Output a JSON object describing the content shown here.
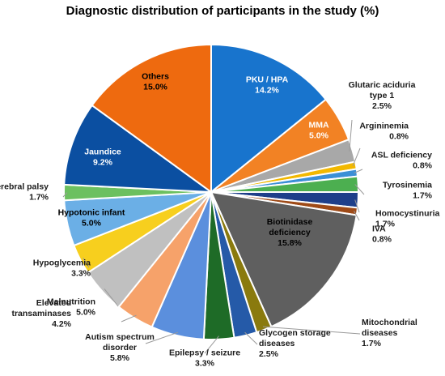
{
  "chart_data": {
    "type": "pie",
    "title": "Diagnostic distribution of participants in the study (%)",
    "slices": [
      {
        "name": "PKU / HPA",
        "value": 14.2,
        "pct": "14.2%",
        "color": "#1874CD"
      },
      {
        "name": "MMA",
        "value": 5.0,
        "pct": "5.0%",
        "color": "#F28224"
      },
      {
        "name": "Glutaric aciduria type 1",
        "value": 2.5,
        "pct": "2.5%",
        "color": "#A8A8A8"
      },
      {
        "name": "Argininemia",
        "value": 0.8,
        "pct": "0.8%",
        "color": "#F2B800"
      },
      {
        "name": "ASL deficiency",
        "value": 0.8,
        "pct": "0.8%",
        "color": "#3B8FD6"
      },
      {
        "name": "Tyrosinemia",
        "value": 1.7,
        "pct": "1.7%",
        "color": "#4CAF50"
      },
      {
        "name": "Homocystinuria",
        "value": 1.7,
        "pct": "1.7%",
        "color": "#1E3F8A"
      },
      {
        "name": "IVA",
        "value": 0.8,
        "pct": "0.8%",
        "color": "#9E4A17"
      },
      {
        "name": "Biotinidase deficiency",
        "value": 15.8,
        "pct": "15.8%",
        "color": "#5F5F5F"
      },
      {
        "name": "Mitochondrial diseases",
        "value": 1.7,
        "pct": "1.7%",
        "color": "#8A7A0E"
      },
      {
        "name": "Glycogen storage diseases",
        "value": 2.5,
        "pct": "2.5%",
        "color": "#255AA8"
      },
      {
        "name": "Epilepsy / seizure",
        "value": 3.3,
        "pct": "3.3%",
        "color": "#1E6B27"
      },
      {
        "name": "Autism spectrum disorder",
        "value": 5.8,
        "pct": "5.8%",
        "color": "#5B8FDD"
      },
      {
        "name": "Elevated transaminases",
        "value": 4.2,
        "pct": "4.2%",
        "color": "#F6A26A"
      },
      {
        "name": "Malnutrition",
        "value": 5.0,
        "pct": "5.0%",
        "color": "#C0C0C0"
      },
      {
        "name": "Hypoglycemia",
        "value": 3.3,
        "pct": "3.3%",
        "color": "#F7CF1E"
      },
      {
        "name": "Hypotonic infant",
        "value": 5.0,
        "pct": "5.0%",
        "color": "#6BAFE6"
      },
      {
        "name": "Cerebral palsy",
        "value": 1.7,
        "pct": "1.7%",
        "color": "#6CC060"
      },
      {
        "name": "Jaundice",
        "value": 9.2,
        "pct": "9.2%",
        "color": "#0B4FA1"
      },
      {
        "name": "Others",
        "value": 15.0,
        "pct": "15.0%",
        "color": "#EE6A0F"
      }
    ]
  }
}
